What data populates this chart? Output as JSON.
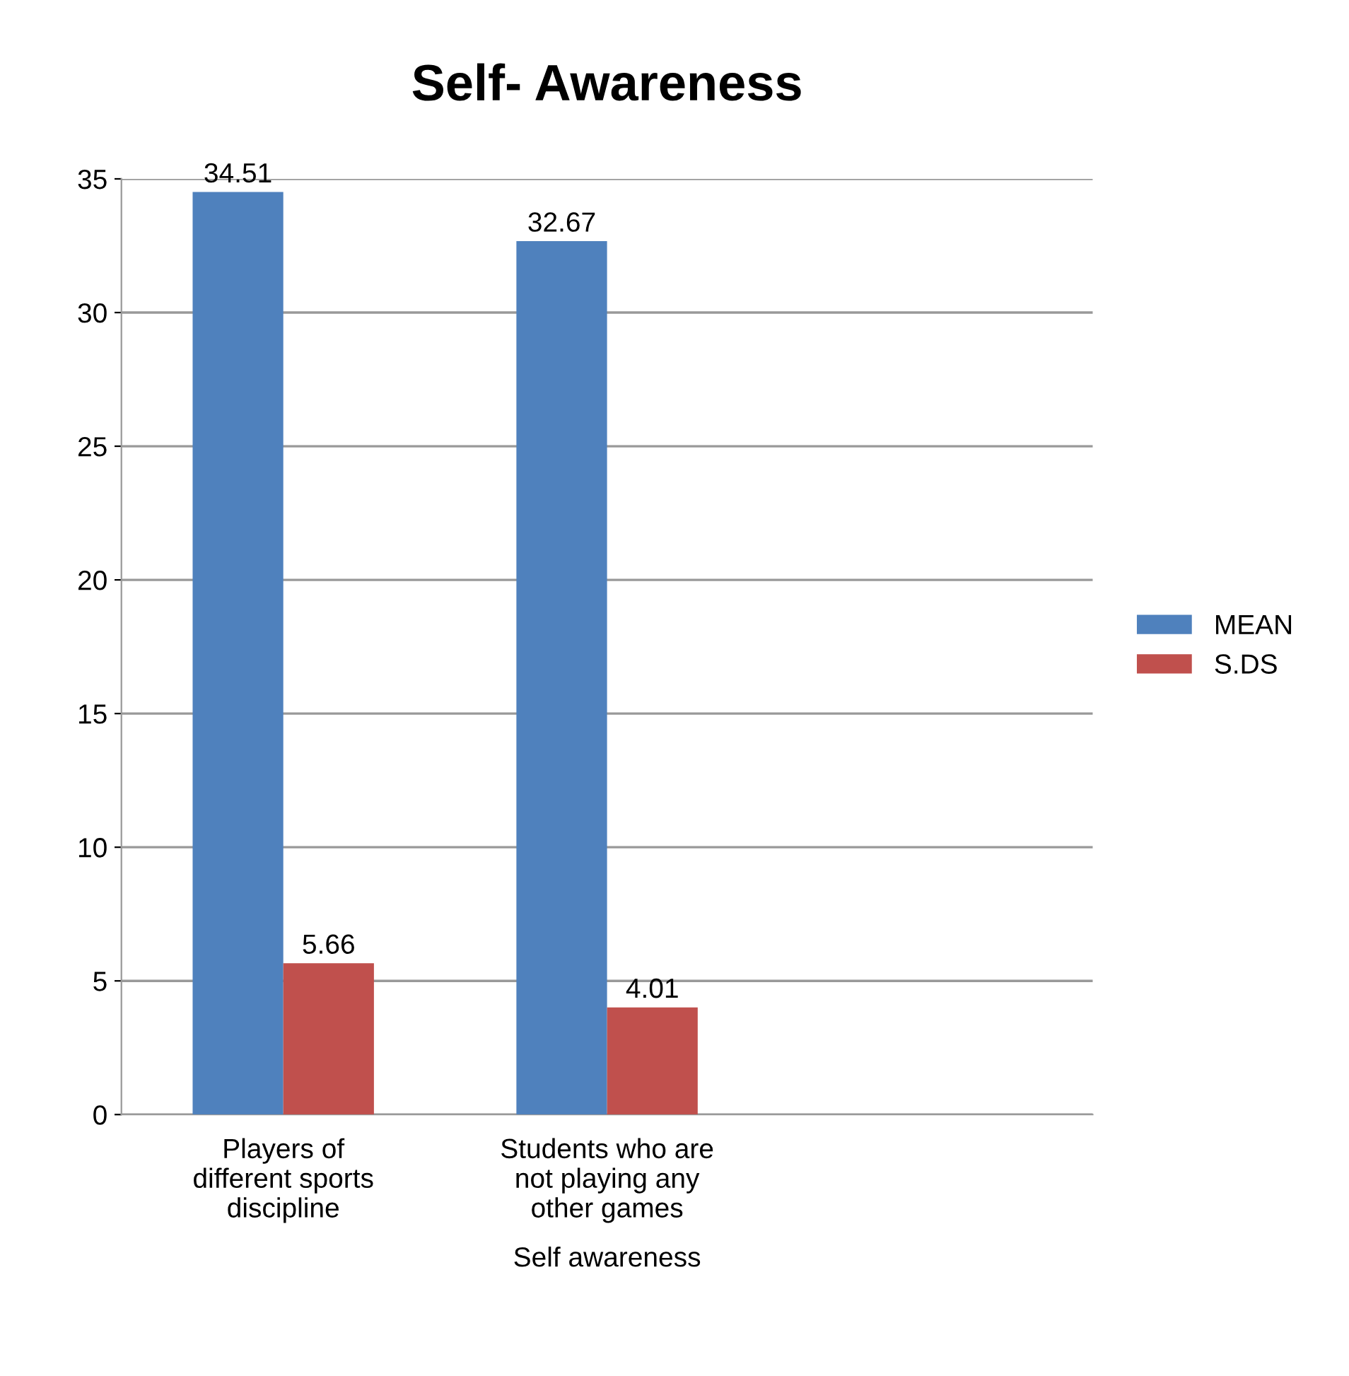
{
  "chart_data": {
    "type": "bar",
    "title": "Self- Awareness",
    "xlabel": "Self awareness",
    "categories": [
      "Players of\ndifferent sports\ndiscipline",
      "Students who are\nnot playing any\nother games",
      null
    ],
    "series": [
      {
        "name": "MEAN",
        "color": "#4f81bd",
        "values": [
          34.51,
          32.67,
          null
        ]
      },
      {
        "name": "S.DS",
        "color": "#c0504d",
        "values": [
          5.66,
          4.01,
          null
        ]
      }
    ],
    "ylim": [
      0,
      35
    ],
    "yticks": [
      0,
      5,
      10,
      15,
      20,
      25,
      30,
      35
    ],
    "grid": "y",
    "legend": "right",
    "data_labels": true
  }
}
